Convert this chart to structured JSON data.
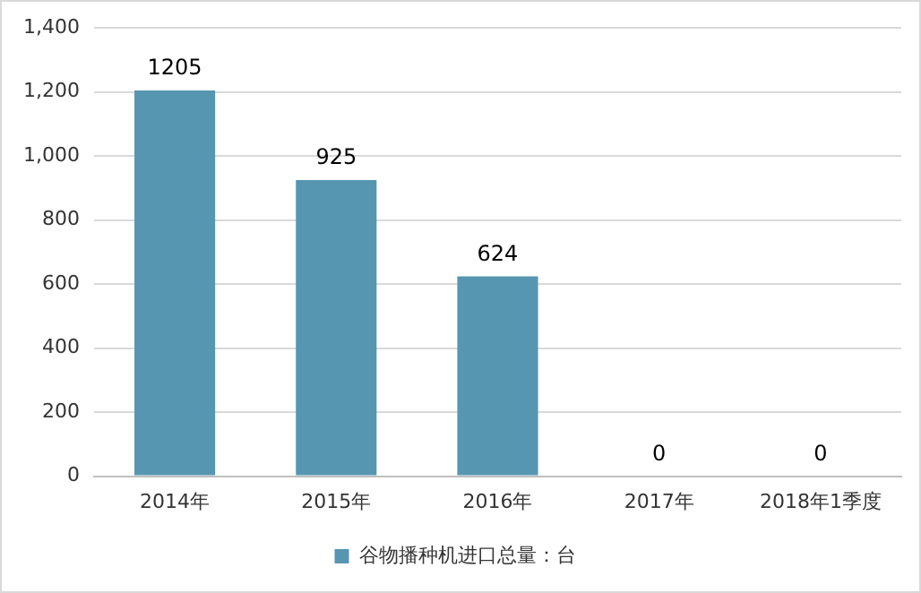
{
  "chart_data": {
    "type": "bar",
    "categories": [
      "2014年",
      "2015年",
      "2016年",
      "2017年",
      "2018年1季度"
    ],
    "series": [
      {
        "name": "谷物播种机进口总量：台",
        "color": "#5796b0",
        "values": [
          1205,
          925,
          624,
          0,
          0
        ]
      }
    ],
    "ylim": [
      0,
      1400
    ],
    "yticks": [
      0,
      200,
      400,
      600,
      800,
      {
        "value": 1000,
        "label": "1,000"
      },
      {
        "value": 1200,
        "label": "1,200"
      },
      {
        "value": 1400,
        "label": "1,400"
      }
    ],
    "grid": "y",
    "legend": "bottom",
    "data_labels": true
  }
}
